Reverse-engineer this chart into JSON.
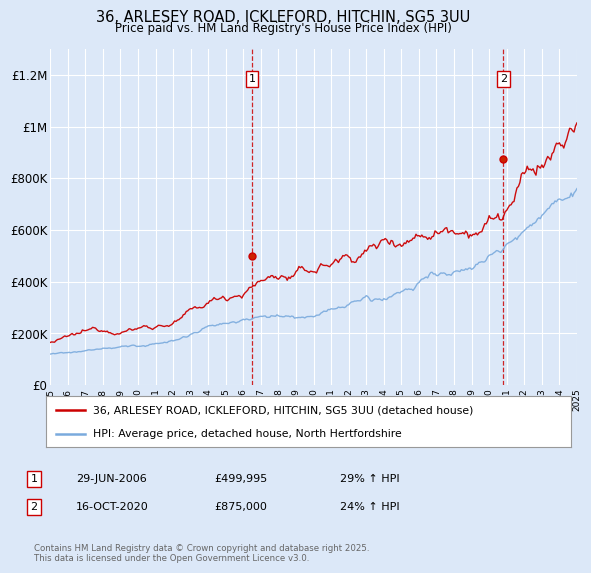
{
  "title": "36, ARLESEY ROAD, ICKLEFORD, HITCHIN, SG5 3UU",
  "subtitle": "Price paid vs. HM Land Registry's House Price Index (HPI)",
  "bg_color": "#dce8f8",
  "plot_bg_color": "#dce8f8",
  "grid_color": "#ffffff",
  "red_color": "#cc0000",
  "blue_color": "#7aaadd",
  "ylim": [
    0,
    1300000
  ],
  "yticks": [
    0,
    200000,
    400000,
    600000,
    800000,
    1000000,
    1200000
  ],
  "ytick_labels": [
    "£0",
    "£200K",
    "£400K",
    "£600K",
    "£800K",
    "£1M",
    "£1.2M"
  ],
  "xmin": 1995,
  "xmax": 2025,
  "marker1_x": 2006.5,
  "marker1_y": 499995,
  "marker2_x": 2020.8,
  "marker2_y": 875000,
  "legend_label_red": "36, ARLESEY ROAD, ICKLEFORD, HITCHIN, SG5 3UU (detached house)",
  "legend_label_blue": "HPI: Average price, detached house, North Hertfordshire",
  "note1_label": "1",
  "note1_date": "29-JUN-2006",
  "note1_price": "£499,995",
  "note1_hpi": "29% ↑ HPI",
  "note2_label": "2",
  "note2_date": "16-OCT-2020",
  "note2_price": "£875,000",
  "note2_hpi": "24% ↑ HPI",
  "footer": "Contains HM Land Registry data © Crown copyright and database right 2025.\nThis data is licensed under the Open Government Licence v3.0."
}
